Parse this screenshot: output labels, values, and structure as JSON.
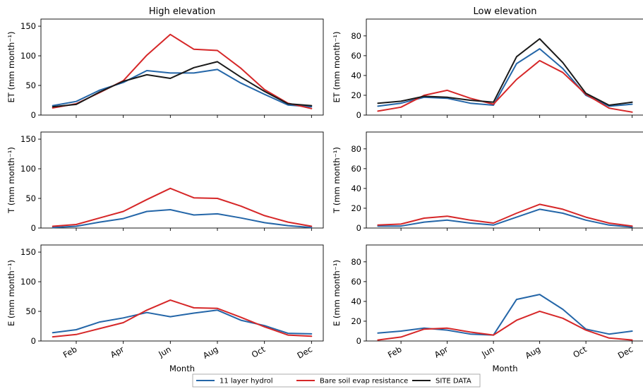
{
  "figure": {
    "legend": {
      "placement": "bottom-center",
      "columns": 3
    }
  },
  "chart_data": [
    {
      "type": "line",
      "title": "High elevation",
      "xlabel": "",
      "ylabel": "ET (mm month⁻¹)",
      "x": [
        1,
        2,
        3,
        4,
        5,
        6,
        7,
        8,
        9,
        10,
        11,
        12
      ],
      "xticks": [
        "Feb",
        "Apr",
        "Jun",
        "Aug",
        "Oct",
        "Dec"
      ],
      "xtick_positions": [
        2,
        4,
        6,
        8,
        10,
        12
      ],
      "ylim": [
        0,
        162
      ],
      "yticks": [
        0,
        50,
        100,
        150
      ],
      "series": [
        {
          "name": "11 layer hydrol",
          "color": "#2466a8",
          "values": [
            16,
            23,
            42,
            55,
            75,
            71,
            71,
            77,
            54,
            35,
            17,
            14
          ]
        },
        {
          "name": "Bare soil evap resistance",
          "color": "#d62728",
          "values": [
            12,
            19,
            38,
            58,
            101,
            136,
            111,
            109,
            79,
            43,
            20,
            11
          ]
        },
        {
          "name": "SITE DATA",
          "color": "#1a1a1a",
          "values": [
            14,
            18,
            39,
            57,
            68,
            62,
            80,
            90,
            64,
            40,
            19,
            16
          ]
        }
      ]
    },
    {
      "type": "line",
      "title": "Low elevation",
      "xlabel": "",
      "ylabel": "ET (mm month⁻¹)",
      "x": [
        1,
        2,
        3,
        4,
        5,
        6,
        7,
        8,
        9,
        10,
        11,
        12
      ],
      "xticks": [
        "Feb",
        "Apr",
        "Jun",
        "Aug",
        "Oct",
        "Dec"
      ],
      "xtick_positions": [
        2,
        4,
        6,
        8,
        10,
        12
      ],
      "ylim": [
        0,
        97
      ],
      "yticks": [
        0,
        20,
        40,
        60,
        80
      ],
      "series": [
        {
          "name": "11 layer hydrol",
          "color": "#2466a8",
          "values": [
            9,
            12,
            18,
            17,
            12,
            10,
            52,
            67,
            47,
            20,
            9,
            11
          ]
        },
        {
          "name": "Bare soil evap resistance",
          "color": "#d62728",
          "values": [
            4,
            8,
            20,
            25,
            17,
            11,
            36,
            55,
            43,
            21,
            7,
            3
          ]
        },
        {
          "name": "SITE DATA",
          "color": "#1a1a1a",
          "values": [
            12,
            14,
            19,
            18,
            15,
            13,
            59,
            77,
            53,
            22,
            10,
            13
          ]
        }
      ]
    },
    {
      "type": "line",
      "title": "",
      "xlabel": "",
      "ylabel": "T (mm month⁻¹)",
      "x": [
        1,
        2,
        3,
        4,
        5,
        6,
        7,
        8,
        9,
        10,
        11,
        12
      ],
      "xticks": [
        "Feb",
        "Apr",
        "Jun",
        "Aug",
        "Oct",
        "Dec"
      ],
      "xtick_positions": [
        2,
        4,
        6,
        8,
        10,
        12
      ],
      "ylim": [
        0,
        162
      ],
      "yticks": [
        0,
        50,
        100,
        150
      ],
      "series": [
        {
          "name": "11 layer hydrol",
          "color": "#2466a8",
          "values": [
            1,
            3,
            10,
            16,
            28,
            31,
            22,
            24,
            17,
            9,
            4,
            1
          ]
        },
        {
          "name": "Bare soil evap resistance",
          "color": "#d62728",
          "values": [
            3,
            6,
            17,
            28,
            48,
            67,
            51,
            50,
            37,
            21,
            10,
            3
          ]
        }
      ]
    },
    {
      "type": "line",
      "title": "",
      "xlabel": "",
      "ylabel": "T (mm month⁻¹)",
      "x": [
        1,
        2,
        3,
        4,
        5,
        6,
        7,
        8,
        9,
        10,
        11,
        12
      ],
      "xticks": [
        "Feb",
        "Apr",
        "Jun",
        "Aug",
        "Oct",
        "Dec"
      ],
      "xtick_positions": [
        2,
        4,
        6,
        8,
        10,
        12
      ],
      "ylim": [
        0,
        97
      ],
      "yticks": [
        0,
        20,
        40,
        60,
        80
      ],
      "series": [
        {
          "name": "11 layer hydrol",
          "color": "#2466a8",
          "values": [
            2,
            2,
            6,
            8,
            5,
            3,
            11,
            19,
            15,
            8,
            3,
            1
          ]
        },
        {
          "name": "Bare soil evap resistance",
          "color": "#d62728",
          "values": [
            3,
            4,
            10,
            12,
            8,
            5,
            15,
            24,
            19,
            11,
            5,
            2
          ]
        }
      ]
    },
    {
      "type": "line",
      "title": "",
      "xlabel": "Month",
      "ylabel": "E (mm month⁻¹)",
      "x": [
        1,
        2,
        3,
        4,
        5,
        6,
        7,
        8,
        9,
        10,
        11,
        12
      ],
      "xticks": [
        "Feb",
        "Apr",
        "Jun",
        "Aug",
        "Oct",
        "Dec"
      ],
      "xtick_positions": [
        2,
        4,
        6,
        8,
        10,
        12
      ],
      "ylim": [
        0,
        162
      ],
      "yticks": [
        0,
        50,
        100,
        150
      ],
      "series": [
        {
          "name": "11 layer hydrol",
          "color": "#2466a8",
          "values": [
            14,
            19,
            32,
            39,
            48,
            41,
            47,
            52,
            35,
            26,
            13,
            12
          ]
        },
        {
          "name": "Bare soil evap resistance",
          "color": "#d62728",
          "values": [
            7,
            11,
            21,
            31,
            52,
            69,
            56,
            55,
            40,
            24,
            10,
            8
          ]
        }
      ]
    },
    {
      "type": "line",
      "title": "",
      "xlabel": "Month",
      "ylabel": "E (mm month⁻¹)",
      "x": [
        1,
        2,
        3,
        4,
        5,
        6,
        7,
        8,
        9,
        10,
        11,
        12
      ],
      "xticks": [
        "Feb",
        "Apr",
        "Jun",
        "Aug",
        "Oct",
        "Dec"
      ],
      "xtick_positions": [
        2,
        4,
        6,
        8,
        10,
        12
      ],
      "ylim": [
        0,
        97
      ],
      "yticks": [
        0,
        20,
        40,
        60,
        80
      ],
      "series": [
        {
          "name": "11 layer hydrol",
          "color": "#2466a8",
          "values": [
            8,
            10,
            13,
            11,
            7,
            6,
            42,
            47,
            32,
            12,
            7,
            10
          ]
        },
        {
          "name": "Bare soil evap resistance",
          "color": "#d62728",
          "values": [
            1,
            4,
            12,
            13,
            9,
            6,
            21,
            30,
            23,
            11,
            3,
            1
          ]
        }
      ]
    }
  ]
}
